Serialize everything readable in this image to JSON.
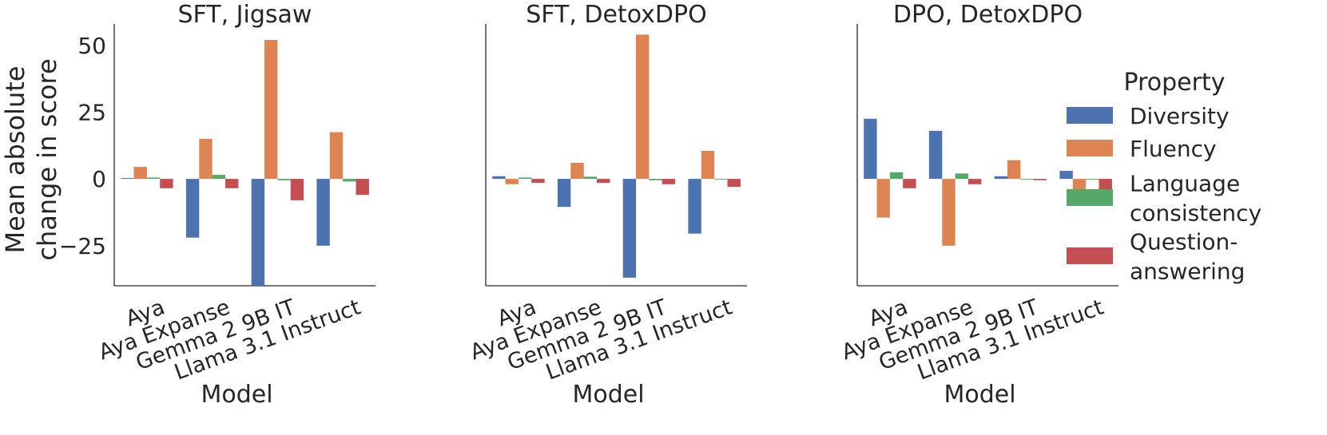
{
  "chart_data": {
    "type": "bar",
    "ylabel": "Mean absolute\nchange in score",
    "xlabel": "Model",
    "ylim": [
      -40,
      58
    ],
    "yticks": [
      -25,
      0,
      25,
      50
    ],
    "categories": [
      "Aya",
      "Aya Expanse",
      "Gemma 2 9B IT",
      "Llama 3.1 Instruct"
    ],
    "legend": {
      "title": "Property",
      "position": "right",
      "entries": [
        {
          "name": "Diversity",
          "lines": [
            "Diversity"
          ]
        },
        {
          "name": "Fluency",
          "lines": [
            "Fluency"
          ]
        },
        {
          "name": "Language consistency",
          "lines": [
            "Language",
            "consistency"
          ]
        },
        {
          "name": "Question-answering",
          "lines": [
            "Question-",
            "answering"
          ]
        }
      ]
    },
    "series_colors": {
      "Diversity": "#4c72b0",
      "Fluency": "#dd8452",
      "Language consistency": "#55a868",
      "Question-answering": "#c44e52"
    },
    "panels": [
      {
        "title": "SFT, Jigsaw",
        "series": [
          {
            "name": "Diversity",
            "values": [
              0.3,
              -22,
              -40,
              -25
            ]
          },
          {
            "name": "Fluency",
            "values": [
              4.5,
              15,
              52,
              17.5
            ]
          },
          {
            "name": "Language consistency",
            "values": [
              0.5,
              1.5,
              -0.5,
              -1
            ]
          },
          {
            "name": "Question-answering",
            "values": [
              -3.5,
              -3.5,
              -8,
              -6
            ]
          }
        ]
      },
      {
        "title": "SFT, DetoxDPO",
        "series": [
          {
            "name": "Diversity",
            "values": [
              1,
              -10.5,
              -37,
              -20.5
            ]
          },
          {
            "name": "Fluency",
            "values": [
              -2,
              6,
              54,
              10.5
            ]
          },
          {
            "name": "Language consistency",
            "values": [
              0.5,
              0.8,
              -0.5,
              0
            ]
          },
          {
            "name": "Question-answering",
            "values": [
              -1.5,
              -1.5,
              -2,
              -3
            ]
          }
        ]
      },
      {
        "title": "DPO, DetoxDPO",
        "series": [
          {
            "name": "Diversity",
            "values": [
              22.5,
              18,
              1,
              3
            ]
          },
          {
            "name": "Fluency",
            "values": [
              -14.5,
              -25,
              7,
              -7
            ]
          },
          {
            "name": "Language consistency",
            "values": [
              2.5,
              2,
              0,
              0
            ]
          },
          {
            "name": "Question-answering",
            "values": [
              -3.5,
              -2,
              -0.5,
              -5.5
            ]
          }
        ]
      }
    ]
  }
}
